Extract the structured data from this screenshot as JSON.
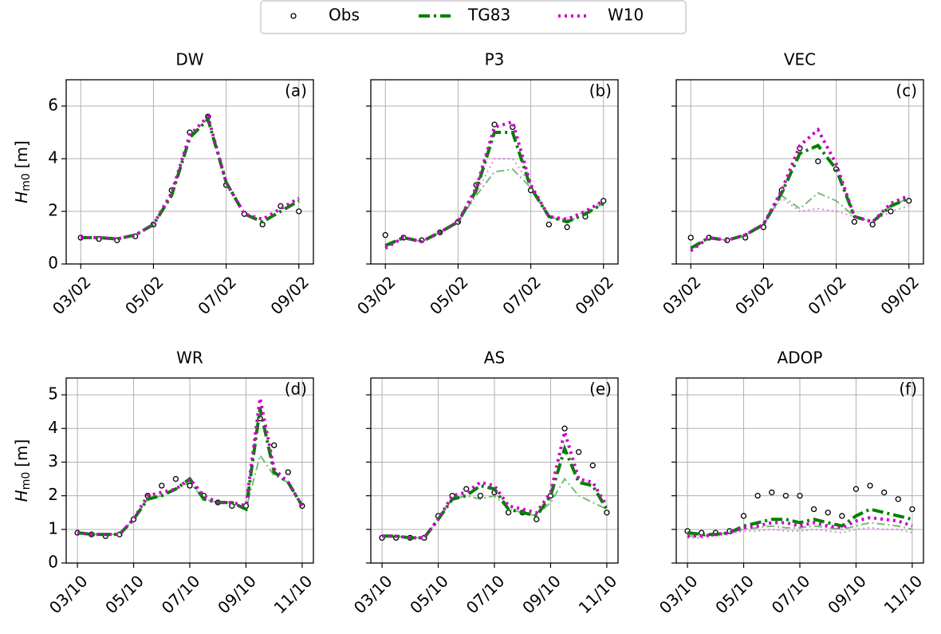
{
  "chart_data": [
    {
      "type": "line",
      "title": "DW",
      "panel_label": "(a)",
      "ylabel_symbol": "H",
      "ylabel_subscript": "m0",
      "ylabel_unit": "[m]",
      "x": [
        3,
        3.5,
        4,
        4.5,
        5,
        5.5,
        6,
        6.5,
        7,
        7.5,
        8,
        8.5,
        9
      ],
      "xlim": [
        2.6,
        9.4
      ],
      "xticks": [
        {
          "value": 3,
          "label": "03/02"
        },
        {
          "value": 5,
          "label": "05/02"
        },
        {
          "value": 7,
          "label": "07/02"
        },
        {
          "value": 9,
          "label": "09/02"
        }
      ],
      "ylim": [
        0,
        7
      ],
      "yticks": [
        0,
        2,
        4,
        6
      ],
      "grid": true,
      "series": [
        {
          "name": "Obs",
          "style": "markers",
          "color": "#000000",
          "values": [
            1.0,
            0.95,
            0.9,
            1.05,
            1.5,
            2.8,
            5.0,
            5.6,
            3.0,
            1.9,
            1.5,
            2.2,
            2.0
          ]
        },
        {
          "name": "TG83",
          "style": "dashdot",
          "color": "#008000",
          "values": [
            1.0,
            1.0,
            0.95,
            1.1,
            1.5,
            2.6,
            4.8,
            5.5,
            3.1,
            1.9,
            1.6,
            2.0,
            2.4
          ]
        },
        {
          "name": "W10",
          "style": "dotted",
          "color": "#cc00cc",
          "values": [
            1.0,
            1.0,
            0.95,
            1.1,
            1.5,
            2.7,
            4.9,
            5.6,
            3.1,
            1.9,
            1.7,
            2.1,
            2.5
          ]
        }
      ]
    },
    {
      "type": "line",
      "title": "P3",
      "panel_label": "(b)",
      "x": [
        3,
        3.5,
        4,
        4.5,
        5,
        5.5,
        6,
        6.5,
        7,
        7.5,
        8,
        8.5,
        9
      ],
      "xlim": [
        2.6,
        9.4
      ],
      "xticks": [
        {
          "value": 3,
          "label": "03/02"
        },
        {
          "value": 5,
          "label": "05/02"
        },
        {
          "value": 7,
          "label": "07/02"
        },
        {
          "value": 9,
          "label": "09/02"
        }
      ],
      "ylim": [
        0,
        7
      ],
      "yticks": [
        0,
        2,
        4,
        6
      ],
      "grid": true,
      "series": [
        {
          "style": "markers",
          "color": "#000000",
          "values": [
            1.1,
            1.0,
            0.9,
            1.2,
            1.6,
            3.0,
            5.3,
            5.2,
            2.8,
            1.5,
            1.4,
            1.8,
            2.4
          ]
        },
        {
          "style": "dashdot",
          "color": "#008000",
          "values": [
            0.7,
            1.0,
            0.85,
            1.2,
            1.6,
            2.8,
            5.0,
            5.0,
            2.9,
            1.8,
            1.6,
            1.9,
            2.3
          ]
        },
        {
          "style": "dotted",
          "color": "#cc00cc",
          "values": [
            0.6,
            1.0,
            0.85,
            1.2,
            1.6,
            2.9,
            5.2,
            5.4,
            3.0,
            1.8,
            1.7,
            2.0,
            2.4
          ]
        },
        {
          "style": "dashdot-thin",
          "color": "#4caf50",
          "values": [
            0.7,
            1.0,
            0.85,
            1.2,
            1.6,
            2.6,
            3.5,
            3.6,
            2.9,
            1.8,
            1.6,
            1.9,
            2.3
          ]
        },
        {
          "style": "dotted-thin",
          "color": "#dd66dd",
          "values": [
            0.6,
            1.0,
            0.85,
            1.2,
            1.6,
            2.7,
            4.0,
            4.0,
            3.0,
            1.8,
            1.7,
            2.0,
            2.4
          ]
        }
      ]
    },
    {
      "type": "line",
      "title": "VEC",
      "panel_label": "(c)",
      "x": [
        3,
        3.5,
        4,
        4.5,
        5,
        5.5,
        6,
        6.5,
        7,
        7.5,
        8,
        8.5,
        9
      ],
      "xlim": [
        2.6,
        9.4
      ],
      "xticks": [
        {
          "value": 3,
          "label": "03/02"
        },
        {
          "value": 5,
          "label": "05/02"
        },
        {
          "value": 7,
          "label": "07/02"
        },
        {
          "value": 9,
          "label": "09/02"
        }
      ],
      "ylim": [
        0,
        7
      ],
      "yticks": [
        0,
        2,
        4,
        6
      ],
      "grid": true,
      "series": [
        {
          "style": "markers",
          "color": "#000000",
          "values": [
            1.0,
            1.0,
            0.9,
            1.0,
            1.4,
            2.8,
            4.4,
            3.9,
            3.6,
            1.6,
            1.5,
            2.0,
            2.4
          ]
        },
        {
          "style": "dashdot",
          "color": "#008000",
          "values": [
            0.6,
            1.0,
            0.9,
            1.1,
            1.5,
            2.7,
            4.2,
            4.5,
            3.6,
            1.8,
            1.6,
            2.2,
            2.5
          ]
        },
        {
          "style": "dotted",
          "color": "#cc00cc",
          "values": [
            0.5,
            1.0,
            0.9,
            1.1,
            1.5,
            2.8,
            4.5,
            5.1,
            3.8,
            1.8,
            1.6,
            2.3,
            2.6
          ]
        },
        {
          "style": "dashdot-thin",
          "color": "#4caf50",
          "values": [
            0.6,
            1.0,
            0.9,
            1.1,
            1.5,
            2.6,
            2.1,
            2.7,
            2.4,
            1.8,
            1.6,
            2.2,
            2.5
          ]
        },
        {
          "style": "dotted-thin",
          "color": "#dd66dd",
          "values": [
            0.5,
            1.0,
            0.9,
            1.1,
            1.5,
            2.5,
            2.0,
            2.1,
            2.0,
            1.8,
            1.6,
            2.0,
            2.2
          ]
        }
      ]
    },
    {
      "type": "line",
      "title": "WR",
      "panel_label": "(d)",
      "ylabel_symbol": "H",
      "ylabel_subscript": "m0",
      "ylabel_unit": "[m]",
      "x": [
        3,
        3.5,
        4,
        4.5,
        5,
        5.5,
        6,
        6.5,
        7,
        7.5,
        8,
        8.5,
        9,
        9.5,
        10,
        10.5,
        11
      ],
      "xlim": [
        2.6,
        11.4
      ],
      "xticks": [
        {
          "value": 3,
          "label": "03/10"
        },
        {
          "value": 5,
          "label": "05/10"
        },
        {
          "value": 7,
          "label": "07/10"
        },
        {
          "value": 9,
          "label": "09/10"
        },
        {
          "value": 11,
          "label": "11/10"
        }
      ],
      "ylim": [
        0,
        5.5
      ],
      "yticks": [
        0,
        1,
        2,
        3,
        4,
        5
      ],
      "grid": true,
      "series": [
        {
          "style": "markers",
          "color": "#000000",
          "values": [
            0.9,
            0.85,
            0.8,
            0.85,
            1.3,
            2.0,
            2.3,
            2.5,
            2.3,
            2.0,
            1.8,
            1.7,
            1.7,
            4.3,
            3.5,
            2.7,
            1.7
          ]
        },
        {
          "style": "dashdot",
          "color": "#008000",
          "values": [
            0.9,
            0.85,
            0.85,
            0.85,
            1.3,
            1.9,
            2.0,
            2.2,
            2.5,
            1.9,
            1.8,
            1.8,
            1.6,
            4.6,
            2.7,
            2.4,
            1.7
          ]
        },
        {
          "style": "dotted",
          "color": "#cc00cc",
          "values": [
            0.9,
            0.85,
            0.85,
            0.85,
            1.3,
            2.0,
            2.1,
            2.2,
            2.5,
            2.0,
            1.8,
            1.8,
            1.7,
            4.9,
            2.8,
            2.4,
            1.7
          ]
        },
        {
          "style": "dashdot-thin",
          "color": "#4caf50",
          "values": [
            0.9,
            0.85,
            0.85,
            0.85,
            1.3,
            1.9,
            2.0,
            2.2,
            2.4,
            1.9,
            1.8,
            1.8,
            1.6,
            3.2,
            2.6,
            2.4,
            1.7
          ]
        }
      ]
    },
    {
      "type": "line",
      "title": "AS",
      "panel_label": "(e)",
      "x": [
        3,
        3.5,
        4,
        4.5,
        5,
        5.5,
        6,
        6.5,
        7,
        7.5,
        8,
        8.5,
        9,
        9.5,
        10,
        10.5,
        11
      ],
      "xlim": [
        2.6,
        11.4
      ],
      "xticks": [
        {
          "value": 3,
          "label": "03/10"
        },
        {
          "value": 5,
          "label": "05/10"
        },
        {
          "value": 7,
          "label": "07/10"
        },
        {
          "value": 9,
          "label": "09/10"
        },
        {
          "value": 11,
          "label": "11/10"
        }
      ],
      "ylim": [
        0,
        5.5
      ],
      "yticks": [
        0,
        1,
        2,
        3,
        4,
        5
      ],
      "grid": true,
      "series": [
        {
          "style": "markers",
          "color": "#000000",
          "values": [
            0.75,
            0.75,
            0.75,
            0.75,
            1.4,
            2.0,
            2.2,
            2.0,
            2.1,
            1.5,
            1.5,
            1.3,
            2.0,
            4.0,
            3.3,
            2.9,
            1.5
          ]
        },
        {
          "style": "dashdot",
          "color": "#008000",
          "values": [
            0.8,
            0.8,
            0.75,
            0.75,
            1.3,
            1.9,
            2.0,
            2.3,
            2.2,
            1.6,
            1.5,
            1.4,
            2.0,
            3.4,
            2.4,
            2.3,
            1.6
          ]
        },
        {
          "style": "dotted",
          "color": "#cc00cc",
          "values": [
            0.8,
            0.8,
            0.75,
            0.75,
            1.3,
            2.0,
            2.1,
            2.4,
            2.3,
            1.7,
            1.6,
            1.5,
            2.1,
            3.9,
            2.5,
            2.4,
            1.7
          ]
        },
        {
          "style": "dashdot-thin",
          "color": "#4caf50",
          "values": [
            0.8,
            0.8,
            0.75,
            0.75,
            1.3,
            1.9,
            2.0,
            1.9,
            2.0,
            1.6,
            1.5,
            1.4,
            1.8,
            2.5,
            2.0,
            1.8,
            1.6
          ]
        }
      ]
    },
    {
      "type": "line",
      "title": "ADOP",
      "panel_label": "(f)",
      "x": [
        3,
        3.5,
        4,
        4.5,
        5,
        5.5,
        6,
        6.5,
        7,
        7.5,
        8,
        8.5,
        9,
        9.5,
        10,
        10.5,
        11
      ],
      "xlim": [
        2.6,
        11.4
      ],
      "xticks": [
        {
          "value": 3,
          "label": "03/10"
        },
        {
          "value": 5,
          "label": "05/10"
        },
        {
          "value": 7,
          "label": "07/10"
        },
        {
          "value": 9,
          "label": "09/10"
        },
        {
          "value": 11,
          "label": "11/10"
        }
      ],
      "ylim": [
        0,
        5.5
      ],
      "yticks": [
        0,
        1,
        2,
        3,
        4,
        5
      ],
      "grid": true,
      "series": [
        {
          "style": "markers",
          "color": "#000000",
          "values": [
            0.95,
            0.9,
            0.9,
            0.95,
            1.4,
            2.0,
            2.1,
            2.0,
            2.0,
            1.6,
            1.5,
            1.4,
            2.2,
            2.3,
            2.1,
            1.9,
            1.6
          ]
        },
        {
          "style": "dashdot",
          "color": "#008000",
          "values": [
            0.9,
            0.85,
            0.85,
            0.9,
            1.1,
            1.2,
            1.3,
            1.3,
            1.2,
            1.3,
            1.2,
            1.1,
            1.4,
            1.6,
            1.5,
            1.4,
            1.3
          ]
        },
        {
          "style": "dotted",
          "color": "#cc00cc",
          "values": [
            0.8,
            0.8,
            0.85,
            0.9,
            1.05,
            1.1,
            1.2,
            1.2,
            1.1,
            1.2,
            1.1,
            1.05,
            1.25,
            1.35,
            1.3,
            1.25,
            1.1
          ]
        },
        {
          "style": "dashdot-thin",
          "color": "#4caf50",
          "values": [
            0.8,
            0.8,
            0.85,
            0.9,
            1.0,
            1.05,
            1.1,
            1.05,
            1.05,
            1.1,
            1.05,
            1.0,
            1.1,
            1.2,
            1.15,
            1.1,
            1.0
          ]
        },
        {
          "style": "dotted-thin",
          "color": "#dd66dd",
          "values": [
            0.75,
            0.75,
            0.8,
            0.85,
            0.95,
            0.95,
            1.0,
            0.95,
            0.95,
            1.0,
            0.95,
            0.9,
            1.0,
            1.05,
            1.0,
            1.0,
            0.9
          ]
        }
      ]
    }
  ]
}
